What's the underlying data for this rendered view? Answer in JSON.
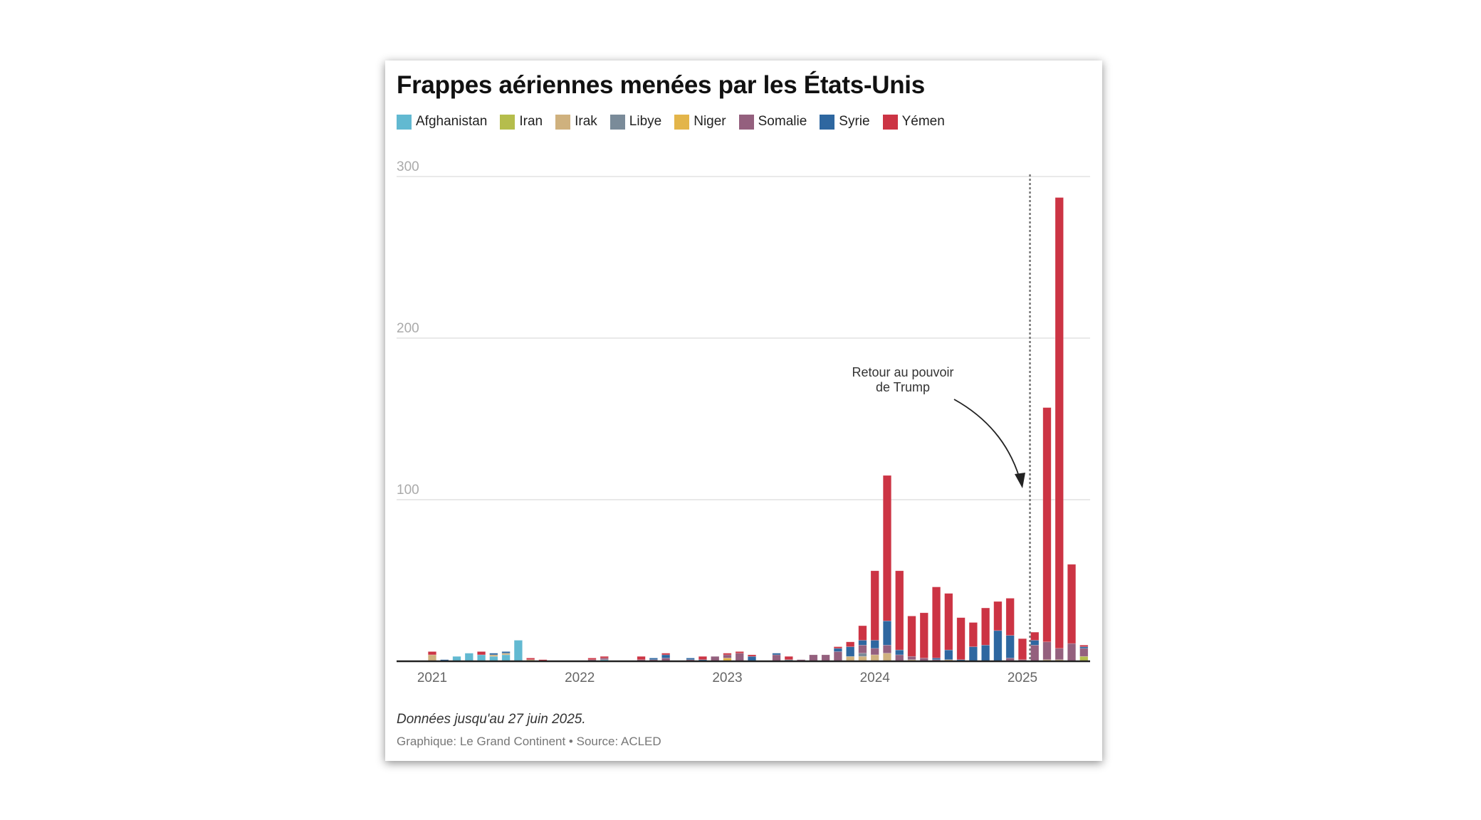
{
  "chart_data": {
    "type": "bar",
    "stacked": true,
    "title": "Frappes aériennes menées par les États-Unis",
    "xlabel": "",
    "ylabel": "",
    "ylim": [
      0,
      300
    ],
    "yticks": [
      "100",
      "200",
      "300"
    ],
    "xticks": [
      {
        "label": "2021",
        "month": "2021-01"
      },
      {
        "label": "2022",
        "month": "2022-01"
      },
      {
        "label": "2023",
        "month": "2023-01"
      },
      {
        "label": "2024",
        "month": "2024-01"
      },
      {
        "label": "2025",
        "month": "2025-01"
      }
    ],
    "grid": true,
    "legend_position": "top",
    "categories": [
      "2021-01",
      "2021-02",
      "2021-03",
      "2021-04",
      "2021-05",
      "2021-06",
      "2021-07",
      "2021-08",
      "2021-09",
      "2021-10",
      "2021-11",
      "2021-12",
      "2022-01",
      "2022-02",
      "2022-03",
      "2022-04",
      "2022-05",
      "2022-06",
      "2022-07",
      "2022-08",
      "2022-09",
      "2022-10",
      "2022-11",
      "2022-12",
      "2023-01",
      "2023-02",
      "2023-03",
      "2023-04",
      "2023-05",
      "2023-06",
      "2023-07",
      "2023-08",
      "2023-09",
      "2023-10",
      "2023-11",
      "2023-12",
      "2024-01",
      "2024-02",
      "2024-03",
      "2024-04",
      "2024-05",
      "2024-06",
      "2024-07",
      "2024-08",
      "2024-09",
      "2024-10",
      "2024-11",
      "2024-12",
      "2025-01",
      "2025-02",
      "2025-03",
      "2025-04",
      "2025-05",
      "2025-06"
    ],
    "series": [
      {
        "name": "Afghanistan",
        "color": "#62b9d1",
        "values": [
          0,
          0,
          3,
          5,
          4,
          3,
          4,
          13,
          0,
          0,
          0,
          0,
          0,
          0,
          1,
          0,
          0,
          0,
          0,
          0,
          0,
          0,
          0,
          0,
          0,
          0,
          0,
          0,
          0,
          0,
          0,
          0,
          0,
          0,
          0,
          0,
          0,
          0,
          0,
          0,
          0,
          0,
          0,
          0,
          0,
          0,
          0,
          0,
          0,
          0,
          0,
          0,
          0,
          0
        ]
      },
      {
        "name": "Iran",
        "color": "#b5bd4c",
        "values": [
          0,
          0,
          0,
          0,
          0,
          0,
          0,
          0,
          0,
          0,
          0,
          0,
          0,
          0,
          0,
          0,
          0,
          0,
          0,
          0,
          0,
          0,
          0,
          0,
          0,
          0,
          0,
          0,
          0,
          0,
          0,
          0,
          0,
          0,
          0,
          0,
          0,
          0,
          0,
          0,
          0,
          0,
          0,
          0,
          0,
          0,
          0,
          0,
          0,
          0,
          0,
          0,
          0,
          3
        ]
      },
      {
        "name": "Irak",
        "color": "#cfb17e",
        "values": [
          4,
          0,
          0,
          0,
          0,
          1,
          1,
          0,
          1,
          0,
          0,
          0,
          0,
          0,
          0,
          0,
          0,
          0,
          0,
          0,
          0,
          0,
          0,
          0,
          0,
          0,
          0,
          0,
          0,
          0,
          0,
          0,
          0,
          0,
          3,
          3,
          4,
          5,
          0,
          1,
          0,
          0,
          1,
          0,
          0,
          0,
          0,
          0,
          0,
          0,
          1,
          1,
          0,
          0
        ]
      },
      {
        "name": "Niger",
        "color": "#e3b54a",
        "values": [
          0,
          0,
          0,
          0,
          0,
          0,
          0,
          0,
          0,
          0,
          0,
          0,
          0,
          0,
          0,
          0,
          0,
          0,
          0,
          0,
          0,
          0,
          0,
          0,
          2,
          0,
          0,
          0,
          0,
          0,
          0,
          0,
          0,
          0,
          0,
          0,
          0,
          0,
          0,
          0,
          0,
          0,
          0,
          0,
          0,
          0,
          0,
          0,
          0,
          0,
          0,
          0,
          0,
          0
        ]
      },
      {
        "name": "Libye",
        "color": "#7a8b99",
        "values": [
          0,
          0,
          0,
          0,
          0,
          0,
          0,
          0,
          0,
          0,
          0,
          0,
          0,
          0,
          0,
          0,
          0,
          0,
          0,
          0,
          0,
          0,
          0,
          0,
          0,
          0,
          0,
          0,
          0,
          1,
          0,
          0,
          0,
          0,
          0,
          2,
          0,
          0,
          0,
          0,
          0,
          0,
          0,
          0,
          0,
          0,
          0,
          0,
          0,
          0,
          0,
          0,
          0,
          0
        ]
      },
      {
        "name": "Somalie",
        "color": "#94607e",
        "values": [
          0,
          0,
          0,
          0,
          0,
          0,
          0,
          0,
          0,
          0,
          0,
          0,
          0,
          1,
          1,
          0,
          0,
          1,
          1,
          2,
          0,
          1,
          0,
          3,
          2,
          5,
          0,
          0,
          4,
          0,
          1,
          4,
          4,
          6,
          0,
          5,
          4,
          5,
          4,
          2,
          2,
          1,
          0,
          0,
          0,
          0,
          0,
          2,
          1,
          10,
          11,
          7,
          11,
          5
        ]
      },
      {
        "name": "Syrie",
        "color": "#2e67a0",
        "values": [
          0,
          1,
          0,
          0,
          0,
          1,
          1,
          0,
          0,
          0,
          0,
          0,
          0,
          0,
          0,
          0,
          0,
          0,
          1,
          2,
          0,
          1,
          1,
          0,
          0,
          0,
          3,
          0,
          1,
          0,
          0,
          0,
          0,
          2,
          6,
          3,
          5,
          15,
          3,
          0,
          0,
          1,
          6,
          1,
          9,
          10,
          19,
          14,
          0,
          3,
          0,
          0,
          0,
          1
        ]
      },
      {
        "name": "Yémen",
        "color": "#cc3444",
        "values": [
          2,
          0,
          0,
          0,
          2,
          0,
          0,
          0,
          1,
          1,
          0,
          0,
          0,
          1,
          1,
          0,
          0,
          2,
          0,
          1,
          0,
          0,
          2,
          0,
          1,
          1,
          1,
          0,
          0,
          2,
          0,
          0,
          0,
          1,
          3,
          9,
          43,
          90,
          49,
          25,
          28,
          44,
          35,
          26,
          15,
          23,
          18,
          23,
          13,
          5,
          145,
          279,
          49,
          1
        ]
      }
    ],
    "annotation": {
      "lines": [
        "Retour au pouvoir",
        "de Trump"
      ],
      "date": "2025-01-20"
    }
  },
  "legend_order": [
    "Afghanistan",
    "Iran",
    "Irak",
    "Libye",
    "Niger",
    "Somalie",
    "Syrie",
    "Yémen"
  ],
  "footer": {
    "note": "Données jusqu'au 27 juin 2025.",
    "credit": "Graphique: Le Grand Continent • Source: ACLED"
  }
}
